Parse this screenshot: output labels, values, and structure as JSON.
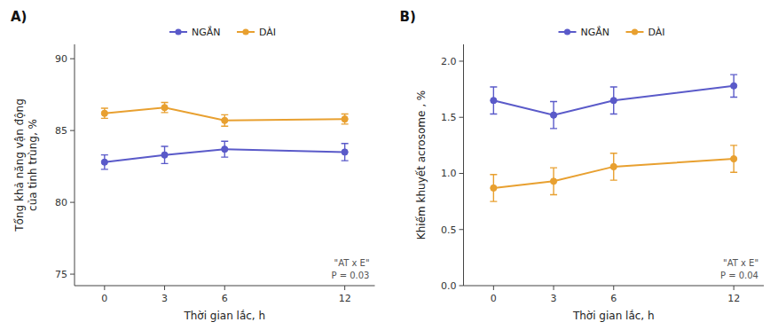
{
  "chart_data": [
    {
      "type": "line",
      "title": "A)",
      "y_label": "Tổng khả năng vận động\ncủa tinh trùng, %",
      "x_label": "Thời gian lắc, h",
      "x": [
        0,
        3,
        6,
        12
      ],
      "xlim": [
        -1.5,
        13.5
      ],
      "xticks": [
        0,
        3,
        6,
        12
      ],
      "ylim": [
        74.2,
        91.0
      ],
      "yticks": [
        75,
        80,
        85,
        90
      ],
      "grid": false,
      "legend": "upper center",
      "marker": "circle",
      "annotations": [
        "\"AT x E\"",
        "P = 0.03"
      ],
      "series": [
        {
          "name": "NGẮN",
          "color": "#5a5ac9",
          "values": [
            82.8,
            83.3,
            83.7,
            83.5
          ],
          "errors": [
            0.5,
            0.6,
            0.55,
            0.6
          ]
        },
        {
          "name": "DÀI",
          "color": "#e8a030",
          "values": [
            86.2,
            86.6,
            85.7,
            85.8
          ],
          "errors": [
            0.35,
            0.35,
            0.4,
            0.35
          ]
        }
      ]
    },
    {
      "type": "line",
      "title": "B)",
      "y_label": "Khiếm khuyết acrosome , %",
      "x_label": "Thời gian lắc, h",
      "x": [
        0,
        3,
        6,
        12
      ],
      "xlim": [
        -1.5,
        13.5
      ],
      "xticks": [
        0,
        3,
        6,
        12
      ],
      "ylim": [
        0.0,
        2.15
      ],
      "yticks": [
        {
          "value": 0.0,
          "label": "0.0"
        },
        0.5,
        {
          "value": 1.0,
          "label": "1.0"
        },
        1.5,
        {
          "value": 2.0,
          "label": "2.0"
        }
      ],
      "grid": false,
      "legend": "upper center",
      "marker": "circle",
      "annotations": [
        "\"AT x E\"",
        "P = 0.04"
      ],
      "series": [
        {
          "name": "NGẮN",
          "color": "#5a5ac9",
          "values": [
            1.65,
            1.52,
            1.65,
            1.78
          ],
          "errors": [
            0.12,
            0.12,
            0.12,
            0.1
          ]
        },
        {
          "name": "DÀI",
          "color": "#e8a030",
          "values": [
            0.87,
            0.93,
            1.06,
            1.13
          ],
          "errors": [
            0.12,
            0.12,
            0.12,
            0.12
          ]
        }
      ]
    }
  ]
}
